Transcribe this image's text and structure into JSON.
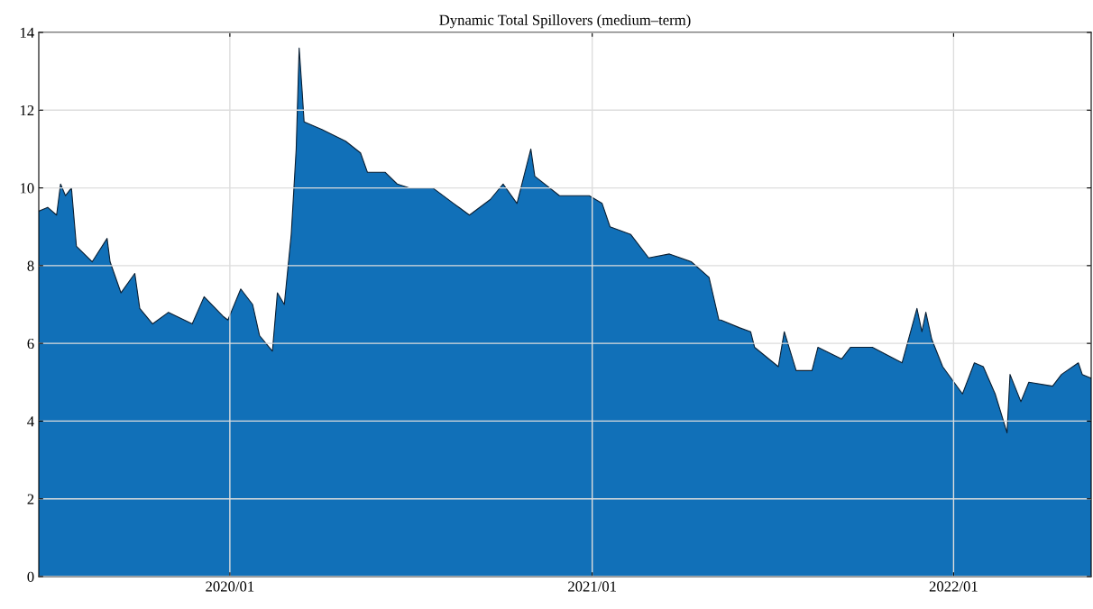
{
  "chart_data": {
    "type": "area",
    "title": "Dynamic Total Spillovers (medium–term)",
    "x": [
      "2019-06-22",
      "2019-07-01",
      "2019-07-10",
      "2019-07-14",
      "2019-07-19",
      "2019-07-25",
      "2019-07-30",
      "2019-08-15",
      "2019-08-30",
      "2019-09-02",
      "2019-09-13",
      "2019-09-27",
      "2019-10-02",
      "2019-10-15",
      "2019-10-31",
      "2019-11-24",
      "2019-12-06",
      "2019-12-25",
      "2019-12-30",
      "2020-01-12",
      "2020-01-24",
      "2020-01-31",
      "2020-02-13",
      "2020-02-18",
      "2020-02-25",
      "2020-03-03",
      "2020-03-08",
      "2020-03-11",
      "2020-03-14",
      "2020-03-16",
      "2020-04-03",
      "2020-04-27",
      "2020-05-12",
      "2020-05-19",
      "2020-06-06",
      "2020-06-18",
      "2020-06-30",
      "2020-07-24",
      "2020-08-14",
      "2020-08-30",
      "2020-09-20",
      "2020-10-03",
      "2020-10-17",
      "2020-10-31",
      "2020-11-04",
      "2020-11-29",
      "2020-12-29",
      "2021-01-11",
      "2021-01-19",
      "2021-02-09",
      "2021-02-27",
      "2021-03-20",
      "2021-04-11",
      "2021-04-29",
      "2021-05-09",
      "2021-05-11",
      "2021-05-30",
      "2021-06-10",
      "2021-06-14",
      "2021-07-08",
      "2021-07-14",
      "2021-07-26",
      "2021-08-11",
      "2021-08-17",
      "2021-09-10",
      "2021-09-19",
      "2021-10-11",
      "2021-11-10",
      "2021-11-25",
      "2021-11-30",
      "2021-12-04",
      "2021-12-10",
      "2021-12-21",
      "2022-01-10",
      "2022-01-22",
      "2022-01-31",
      "2022-02-12",
      "2022-02-24",
      "2022-02-27",
      "2022-03-10",
      "2022-03-18",
      "2022-04-11",
      "2022-04-20",
      "2022-05-07",
      "2022-05-11",
      "2022-05-20"
    ],
    "series": [
      {
        "color": "#1170b8",
        "values": [
          9.4,
          9.5,
          9.3,
          10.1,
          9.8,
          10.0,
          8.5,
          8.1,
          8.7,
          8.1,
          7.3,
          7.8,
          6.9,
          6.5,
          6.8,
          6.5,
          7.2,
          6.7,
          6.6,
          7.4,
          7.0,
          6.2,
          5.8,
          7.3,
          7.0,
          8.8,
          11.0,
          13.6,
          12.5,
          11.7,
          11.5,
          11.2,
          10.9,
          10.4,
          10.4,
          10.1,
          10.0,
          10.0,
          9.6,
          9.3,
          9.7,
          10.1,
          9.6,
          11.0,
          10.3,
          9.8,
          9.8,
          9.6,
          9.0,
          8.8,
          8.2,
          8.3,
          8.1,
          7.7,
          6.6,
          6.6,
          6.4,
          6.3,
          5.9,
          5.4,
          6.3,
          5.3,
          5.3,
          5.9,
          5.6,
          5.9,
          5.9,
          5.5,
          6.9,
          6.3,
          6.8,
          6.1,
          5.4,
          4.7,
          5.5,
          5.4,
          4.7,
          3.7,
          5.2,
          4.5,
          5.0,
          4.9,
          5.2,
          5.5,
          5.2,
          5.1
        ]
      }
    ],
    "xlim": [
      "2019-06-22",
      "2022-05-20"
    ],
    "xticks": [
      {
        "value": "2020-01-01",
        "label": "2020/01"
      },
      {
        "value": "2021-01-01",
        "label": "2021/01"
      },
      {
        "value": "2022-01-01",
        "label": "2022/01"
      }
    ],
    "ylim": [
      0,
      14
    ],
    "yticks": [
      0,
      2,
      4,
      6,
      8,
      10,
      12,
      14
    ],
    "grid": true
  }
}
